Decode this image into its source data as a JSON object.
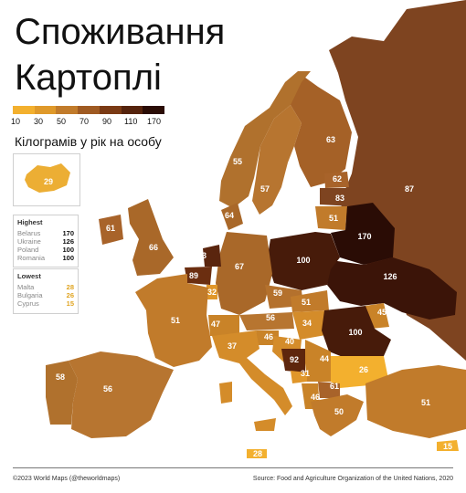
{
  "title": {
    "line1": "Споживання",
    "line2": "Картоплі"
  },
  "legend": {
    "ticks": [
      "10",
      "30",
      "50",
      "70",
      "90",
      "110",
      "170"
    ],
    "colors": [
      "#f3b02e",
      "#df992a",
      "#c17b2b",
      "#9f5a22",
      "#7a3a14",
      "#55230d",
      "#2a0c05"
    ],
    "unit": "Кілограмів у рік на особу"
  },
  "inset": {
    "name": "Iceland",
    "value": "29"
  },
  "highest": {
    "title": "Highest",
    "rows": [
      {
        "country": "Belarus",
        "value": "170"
      },
      {
        "country": "Ukraine",
        "value": "126"
      },
      {
        "country": "Poland",
        "value": "100"
      },
      {
        "country": "Romania",
        "value": "100"
      }
    ]
  },
  "lowest": {
    "title": "Lowest",
    "rows": [
      {
        "country": "Malta",
        "value": "28"
      },
      {
        "country": "Bulgaria",
        "value": "26"
      },
      {
        "country": "Cyprus",
        "value": "15"
      }
    ]
  },
  "countries": [
    {
      "name": "Norway",
      "value": "55"
    },
    {
      "name": "Sweden",
      "value": "57"
    },
    {
      "name": "Finland",
      "value": "63"
    },
    {
      "name": "Russia",
      "value": "87"
    },
    {
      "name": "Estonia",
      "value": "62"
    },
    {
      "name": "Latvia",
      "value": "83"
    },
    {
      "name": "Lithuania",
      "value": "51"
    },
    {
      "name": "Denmark",
      "value": "64"
    },
    {
      "name": "Ireland",
      "value": "61"
    },
    {
      "name": "United Kingdom",
      "value": "66"
    },
    {
      "name": "Netherlands",
      "value": "93"
    },
    {
      "name": "Belgium",
      "value": "89"
    },
    {
      "name": "Luxembourg",
      "value": "32"
    },
    {
      "name": "Germany",
      "value": "67"
    },
    {
      "name": "Poland",
      "value": "100"
    },
    {
      "name": "Belarus",
      "value": "170"
    },
    {
      "name": "Ukraine",
      "value": "126"
    },
    {
      "name": "France",
      "value": "51"
    },
    {
      "name": "Czechia",
      "value": "59"
    },
    {
      "name": "Slovakia",
      "value": "51"
    },
    {
      "name": "Austria",
      "value": "56"
    },
    {
      "name": "Hungary",
      "value": "34"
    },
    {
      "name": "Moldova",
      "value": "45"
    },
    {
      "name": "Romania",
      "value": "100"
    },
    {
      "name": "Switzerland",
      "value": "47"
    },
    {
      "name": "Slovenia",
      "value": "46"
    },
    {
      "name": "Croatia",
      "value": "40"
    },
    {
      "name": "Serbia",
      "value": "44"
    },
    {
      "name": "Bosnia",
      "value": "92"
    },
    {
      "name": "Montenegro",
      "value": "31"
    },
    {
      "name": "North Macedonia",
      "value": "61"
    },
    {
      "name": "Albania",
      "value": "46"
    },
    {
      "name": "Bulgaria",
      "value": "26"
    },
    {
      "name": "Greece",
      "value": "50"
    },
    {
      "name": "Turkey",
      "value": "51"
    },
    {
      "name": "Italy",
      "value": "37"
    },
    {
      "name": "Spain",
      "value": "56"
    },
    {
      "name": "Portugal",
      "value": "58"
    },
    {
      "name": "Malta",
      "value": "28"
    },
    {
      "name": "Cyprus",
      "value": "15"
    }
  ],
  "footer": {
    "left": "©2023 World Maps (@theworldmaps)",
    "right": "Source: Food and Agriculture Organization of the United Nations, 2020"
  }
}
